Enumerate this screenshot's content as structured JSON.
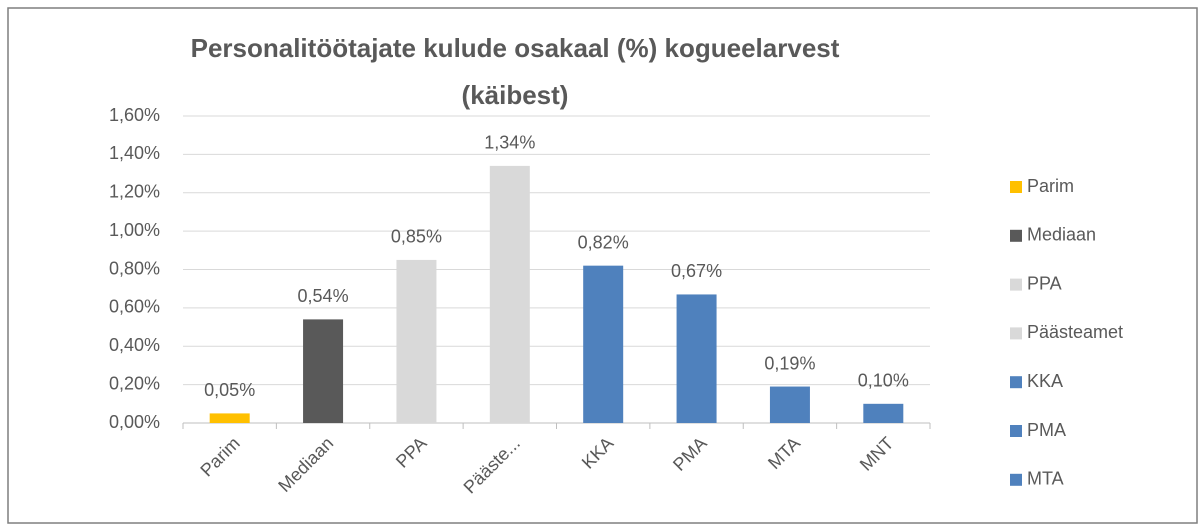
{
  "chart_data": {
    "type": "bar",
    "title": [
      "Personalitöötajate kulude osakaal (%) kogueelarvest",
      "(käibest)"
    ],
    "categories": [
      "Parim",
      "Mediaan",
      "PPA",
      "Pääste...",
      "KKA",
      "PMA",
      "MTA",
      "MNT"
    ],
    "values": [
      0.05,
      0.54,
      0.85,
      1.34,
      0.82,
      0.67,
      0.19,
      0.1
    ],
    "value_labels": [
      "0,05%",
      "0,54%",
      "0,85%",
      "1,34%",
      "0,82%",
      "0,67%",
      "0,19%",
      "0,10%"
    ],
    "colors": [
      "#ffc000",
      "#595959",
      "#d9d9d9",
      "#d9d9d9",
      "#4f81bd",
      "#4f81bd",
      "#4f81bd",
      "#4f81bd"
    ],
    "legend": [
      {
        "name": "Parim",
        "color": "#ffc000"
      },
      {
        "name": "Mediaan",
        "color": "#595959"
      },
      {
        "name": "PPA",
        "color": "#d9d9d9"
      },
      {
        "name": "Päästeamet",
        "color": "#d9d9d9"
      },
      {
        "name": "KKA",
        "color": "#4f81bd"
      },
      {
        "name": "PMA",
        "color": "#4f81bd"
      },
      {
        "name": "MTA",
        "color": "#4f81bd"
      }
    ],
    "legend_position": "right",
    "ylim": [
      0,
      1.6
    ],
    "yticks": [
      {
        "value": 0,
        "label": "0,00%"
      },
      {
        "value": 0.2,
        "label": "0,20%"
      },
      {
        "value": 0.4,
        "label": "0,40%"
      },
      {
        "value": 0.6,
        "label": "0,60%"
      },
      {
        "value": 0.8,
        "label": "0,80%"
      },
      {
        "value": 1.0,
        "label": "1,00%"
      },
      {
        "value": 1.2,
        "label": "1,20%"
      },
      {
        "value": 1.4,
        "label": "1,40%"
      },
      {
        "value": 1.6,
        "label": "1,60%"
      }
    ],
    "grid": true
  }
}
